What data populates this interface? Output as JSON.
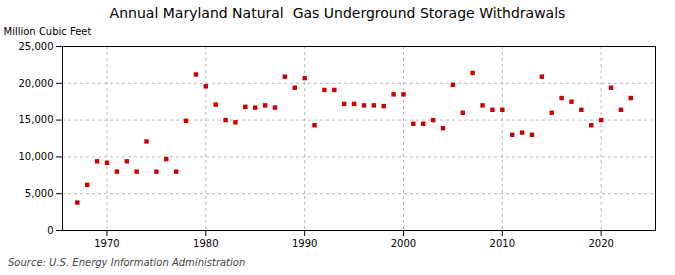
{
  "chart_data": {
    "type": "scatter",
    "title": "Annual Maryland Natural  Gas Underground Storage Withdrawals",
    "ylabel": "Million Cubic Feet",
    "annotations": [
      "Source: U.S. Energy Information Administration"
    ],
    "x": [
      1967,
      1968,
      1969,
      1970,
      1971,
      1972,
      1973,
      1974,
      1975,
      1976,
      1977,
      1978,
      1979,
      1980,
      1981,
      1982,
      1983,
      1984,
      1985,
      1986,
      1987,
      1988,
      1989,
      1990,
      1991,
      1992,
      1993,
      1994,
      1995,
      1996,
      1997,
      1998,
      1999,
      2000,
      2001,
      2002,
      2003,
      2004,
      2005,
      2006,
      2007,
      2008,
      2009,
      2010,
      2011,
      2012,
      2013,
      2014,
      2015,
      2016,
      2017,
      2018,
      2019,
      2020,
      2021,
      2022,
      2023
    ],
    "values": [
      3800,
      6200,
      9400,
      9200,
      8000,
      9400,
      8000,
      12100,
      8000,
      9700,
      8000,
      14900,
      21200,
      19600,
      17100,
      15000,
      14700,
      16800,
      16700,
      17000,
      16700,
      20900,
      19400,
      20700,
      14300,
      19100,
      19100,
      17200,
      17200,
      17000,
      17000,
      16900,
      18500,
      18500,
      14500,
      14500,
      15000,
      13900,
      19800,
      16000,
      21400,
      17000,
      16400,
      16400,
      13000,
      13300,
      13000,
      20900,
      16000,
      18000,
      17500,
      16400,
      14300,
      15000,
      19400,
      16400,
      18000
    ],
    "color": "#cc0000",
    "marker": "square",
    "xlim": [
      1965.5,
      2025.5
    ],
    "xticks": [
      1970,
      1980,
      1990,
      2000,
      2010,
      2020
    ],
    "ylim": [
      0,
      25000
    ],
    "yticks": [
      0,
      {
        "value": 5000,
        "label": "5,000"
      },
      {
        "value": 10000,
        "label": "10,000"
      },
      {
        "value": 15000,
        "label": "15,000"
      },
      {
        "value": 20000,
        "label": "20,000"
      },
      {
        "value": 25000,
        "label": "25,000"
      }
    ],
    "grid": true
  }
}
